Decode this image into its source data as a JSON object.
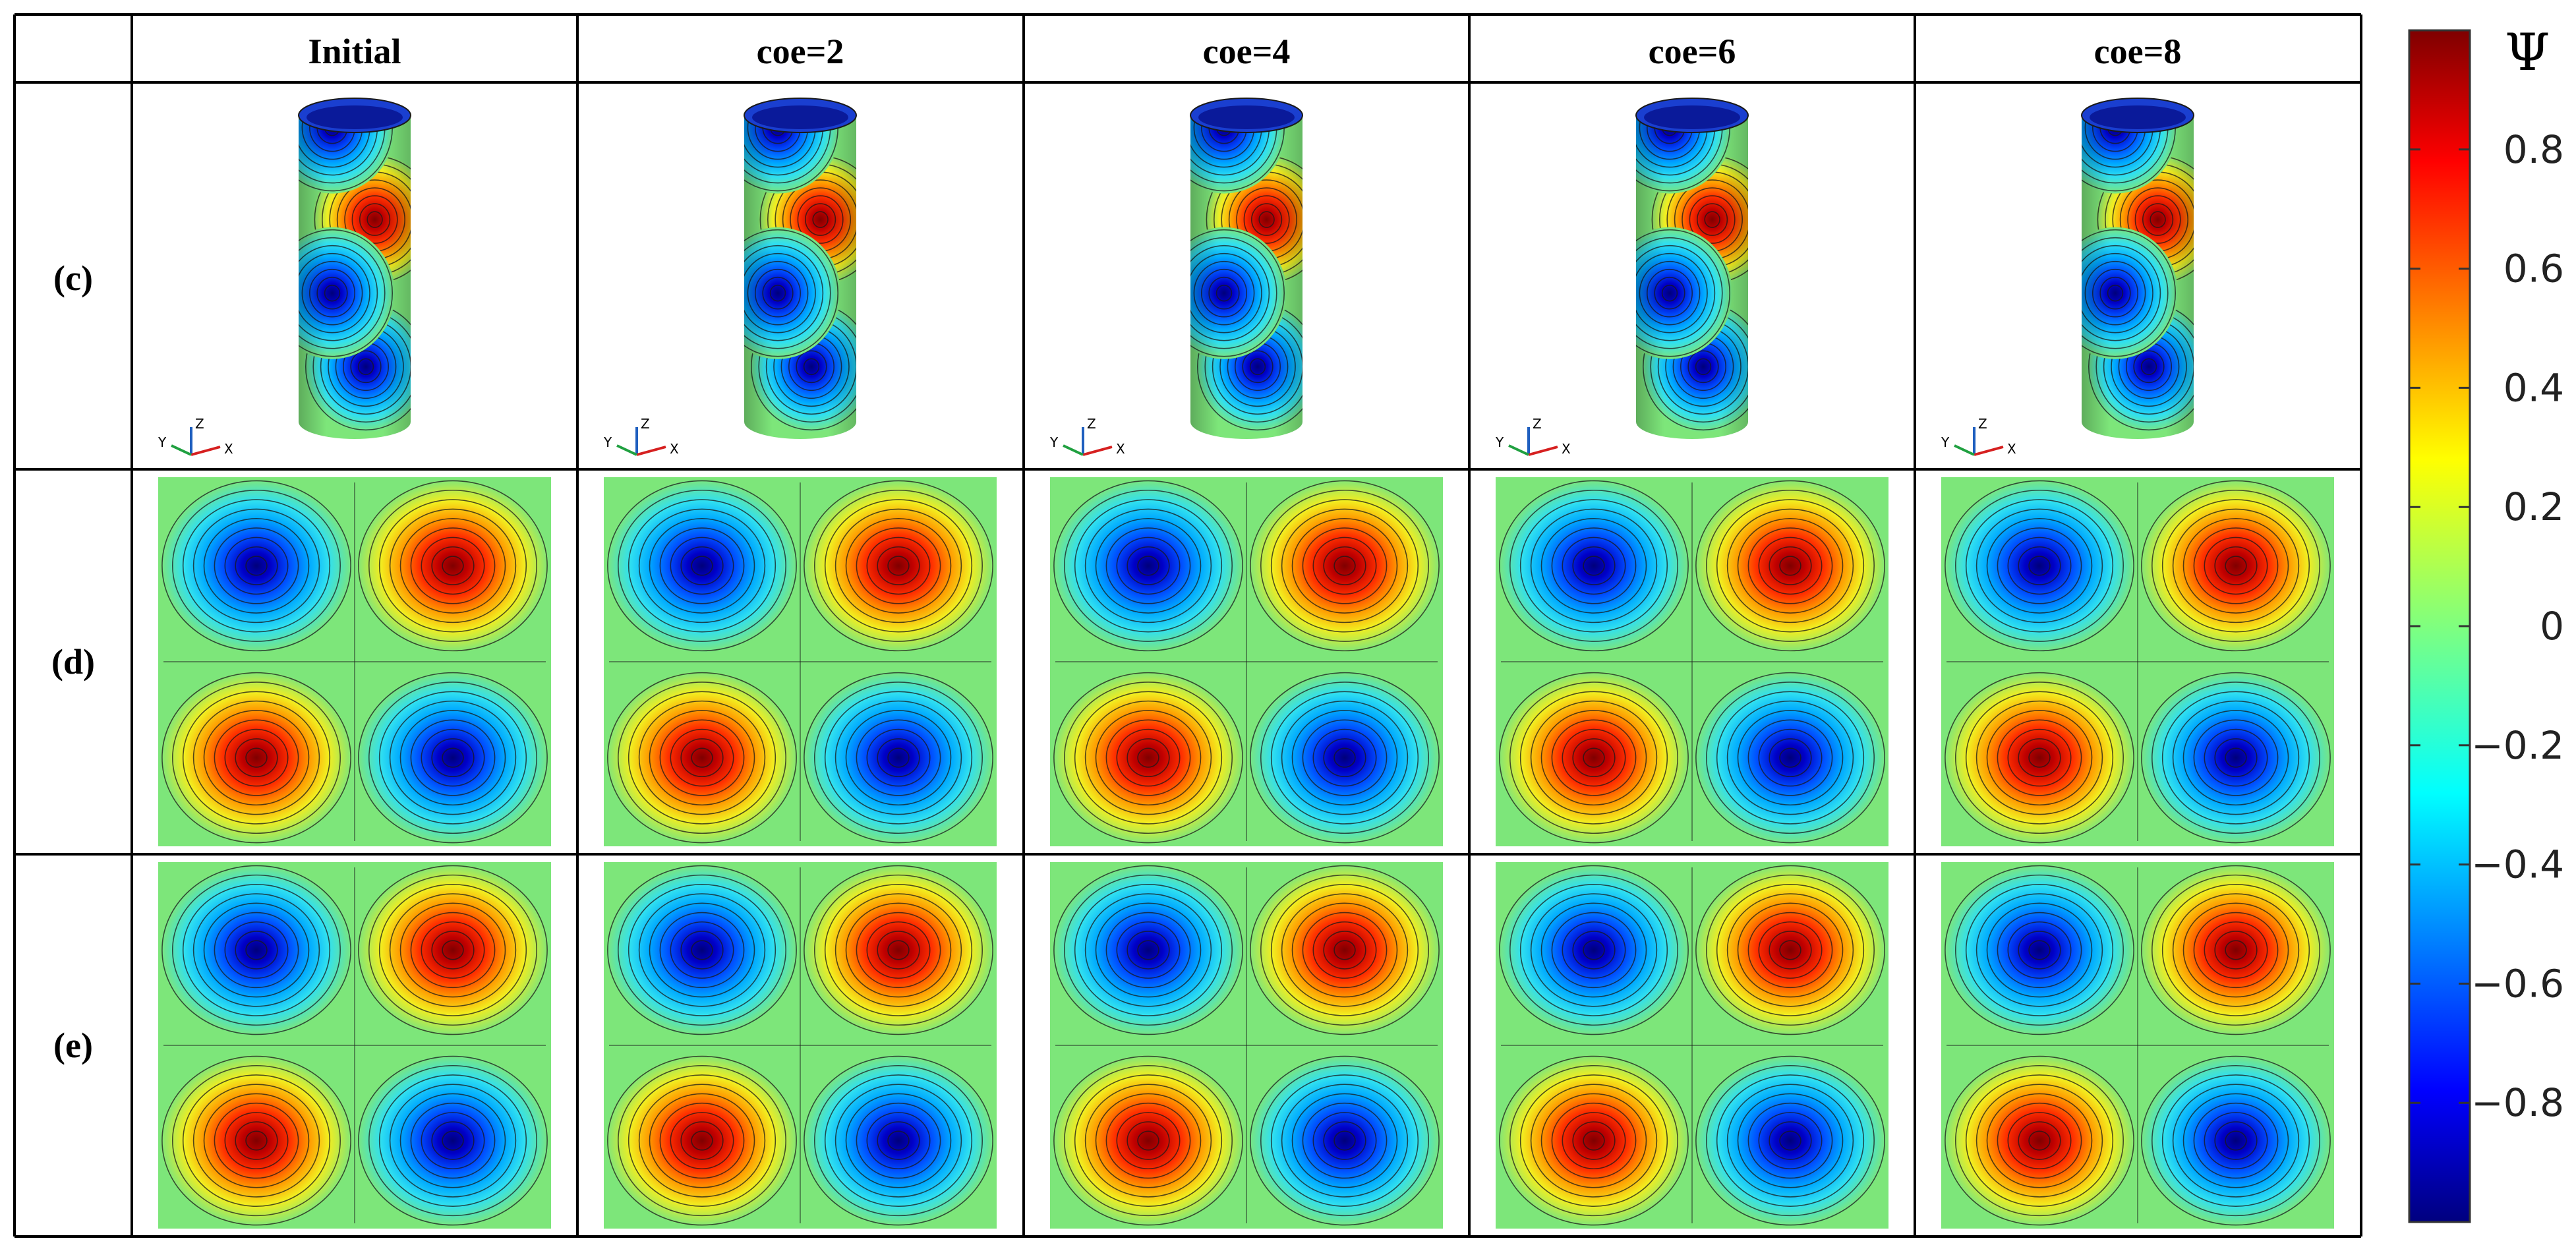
{
  "table": {
    "columns": [
      "Initial",
      "coe=2",
      "coe=4",
      "coe=6",
      "coe=8"
    ],
    "rows": [
      {
        "label": "(c)",
        "kind": "cylinder"
      },
      {
        "label": "(d)",
        "kind": "field"
      },
      {
        "label": "(e)",
        "kind": "field"
      }
    ],
    "axis_triad": {
      "x": "X",
      "y": "Y",
      "z": "Z"
    }
  },
  "colorbar": {
    "symbol": "Ψ",
    "ticks": [
      "0.8",
      "0.6",
      "0.4",
      "0.2",
      "0",
      "−0.2",
      "−0.4",
      "−0.6",
      "−0.8"
    ],
    "tick_values": [
      0.8,
      0.6,
      0.4,
      0.2,
      0,
      -0.2,
      -0.4,
      -0.6,
      -0.8
    ],
    "range": [
      -1,
      1
    ],
    "colormap": "jet"
  },
  "colors": {
    "background_field": "#7de67a",
    "positive_peak": "#8b0000",
    "negative_peak": "#00008b",
    "contour_line": "#1a1a1a"
  }
}
